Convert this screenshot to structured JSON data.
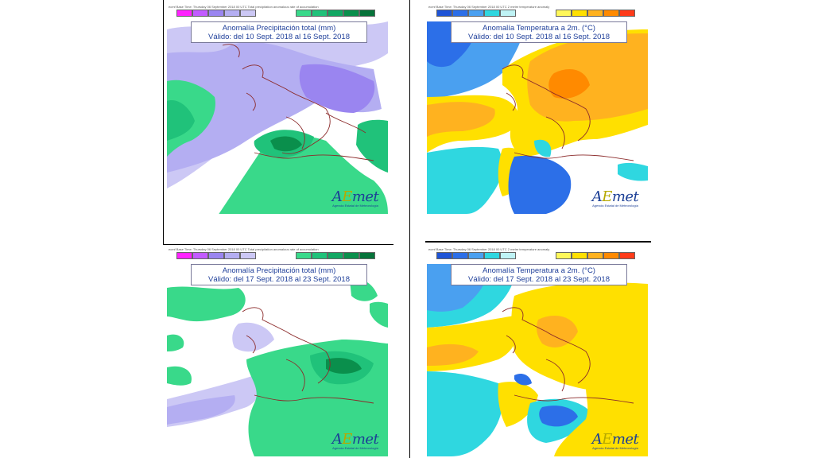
{
  "panels": [
    {
      "id": "p1",
      "header": "ecmf  Base Time: Thursday 06 September 2018 00 UTC  Total precipitation anomalous rate of accumulation",
      "title_line1": "Anomalía Precipitación total (mm)",
      "title_line2": "Válido: del 10 Sept. 2018 al 16 Sept. 2018",
      "logo_text": "AEmet",
      "logo_sub": "Agencia Estatal de Meteorología"
    },
    {
      "id": "p2",
      "header": "ecmf  Base Time: Thursday 06 September 2018 00 UTC  2 metre temperature anomaly",
      "title_line1": "Anomalía Temperatura a 2m. (°C)",
      "title_line2": "Válido: del 10 Sept. 2018 al 16 Sept. 2018",
      "logo_text": "AEmet",
      "logo_sub": "Agencia Estatal de Meteorología"
    },
    {
      "id": "p3",
      "header": "ecmf  Base Time: Thursday 06 September 2018 00 UTC  Total precipitation anomalous rate of accumulation",
      "title_line1": "Anomalía Precipitación total (mm)",
      "title_line2": "Válido: del 17 Sept. 2018 al 23 Sept. 2018",
      "logo_text": "AEmet",
      "logo_sub": "Agencia Estatal de Meteorología"
    },
    {
      "id": "p4",
      "header": "ecmf  Base Time: Thursday 06 September 2018 00 UTC  2 metre temperature anomaly",
      "title_line1": "Anomalía Temperatura a 2m. (°C)",
      "title_line2": "Válido: del 17 Sept. 2018 al 23 Sept. 2018",
      "logo_text": "AEmet",
      "logo_sub": "Agencia Estatal de Meteorología"
    }
  ],
  "colors": {
    "precip_dry": [
      "#ff22ff",
      "#c25bff",
      "#9a85f0",
      "#b4aef2",
      "#ccc8f5"
    ],
    "precip_wet": [
      "#39d98a",
      "#20c27a",
      "#12a763",
      "#0a8f4c",
      "#06733a"
    ],
    "temp_cold": [
      "#1f54d6",
      "#2c6fe8",
      "#4aa0f0",
      "#2fd7e0",
      "#bff3f5"
    ],
    "temp_warm": [
      "#fff85a",
      "#ffe000",
      "#ffb21f",
      "#ff8a00",
      "#ff3b1a"
    ],
    "title_text": "#1f3f9a"
  }
}
